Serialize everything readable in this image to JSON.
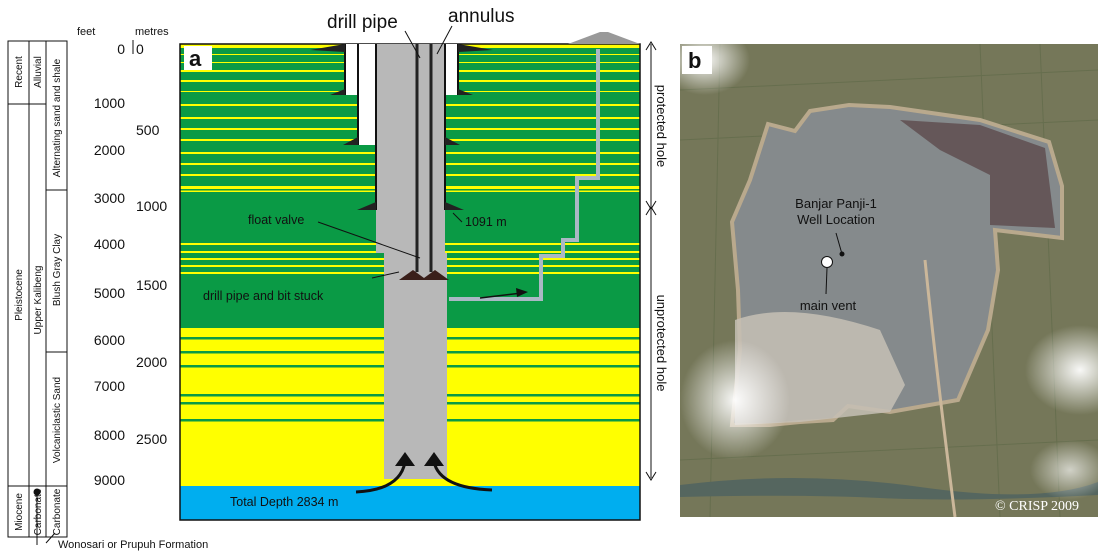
{
  "stratigraphy": {
    "epochs": [
      "Recent",
      "Pleistocene",
      "Miocene"
    ],
    "formations": [
      "Alluvial",
      "Upper Kalibeng",
      "Carbonate"
    ],
    "lithologies": [
      "Alternating sand and shale",
      "Blush Gray Clay",
      "Volcaniclastic Sand"
    ],
    "callout": "Wonosari or Prupuh Formation"
  },
  "depth_scale": {
    "feet_label": "feet",
    "metres_label": "metres",
    "feet_ticks": [
      "0",
      "1000",
      "2000",
      "3000",
      "4000",
      "5000",
      "6000",
      "7000",
      "8000",
      "9000"
    ],
    "metre_ticks": [
      "0",
      "500",
      "1000",
      "1500",
      "2000",
      "2500"
    ]
  },
  "panel_a": {
    "label": "a",
    "drill_pipe": "drill pipe",
    "annulus": "annulus",
    "float_valve": "float valve",
    "casing_shoe": "1091 m",
    "stuck": "drill pipe and bit stuck",
    "total_depth": "Total Depth 2834 m",
    "protected": "protected hole",
    "unprotected": "unprotected hole",
    "colors": {
      "sand": "#ffff00",
      "clay": "#0a9a45",
      "carbonate": "#00aeef",
      "pipe": "#b8b8b8"
    }
  },
  "panel_b": {
    "label": "b",
    "well_label_line1": "Banjar Panji-1",
    "well_label_line2": "Well Location",
    "vent_label": "main vent",
    "copyright": "© CRISP 2009"
  }
}
